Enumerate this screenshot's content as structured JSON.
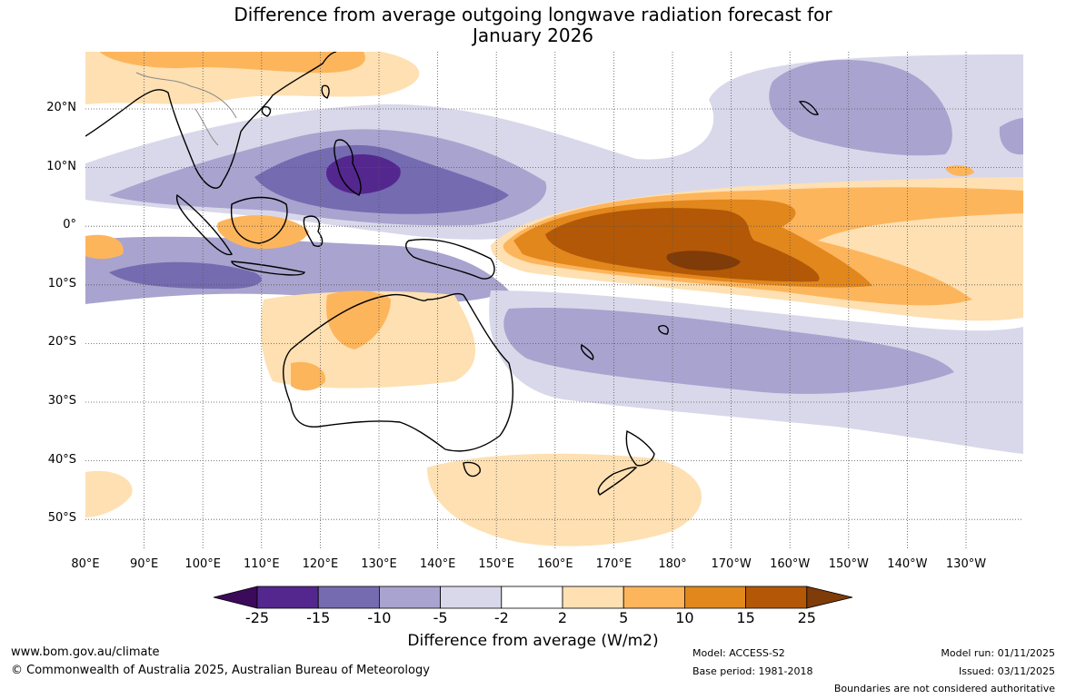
{
  "title": {
    "line1": "Difference from average outgoing longwave radiation forecast for",
    "line2": "January 2026"
  },
  "map": {
    "latitude_labels": [
      "20°N",
      "10°N",
      "0°",
      "10°S",
      "20°S",
      "30°S",
      "40°S",
      "50°S"
    ],
    "longitude_labels": [
      "80°E",
      "90°E",
      "100°E",
      "110°E",
      "120°E",
      "130°E",
      "140°E",
      "150°E",
      "160°E",
      "170°E",
      "180°",
      "170°W",
      "160°W",
      "150°W",
      "140°W",
      "130°W"
    ]
  },
  "colorbar": {
    "tick_labels": [
      "-25",
      "-15",
      "-10",
      "-5",
      "-2",
      "2",
      "5",
      "10",
      "15",
      "25"
    ],
    "colors": [
      "#3b0a5a",
      "#54278f",
      "#756bb1",
      "#a9a3cf",
      "#d9d8ea",
      "#ffffff",
      "#fee0b2",
      "#fdb55c",
      "#e2871c",
      "#b35806",
      "#7f3b08"
    ],
    "title": "Difference from average (W/m2)"
  },
  "footer": {
    "website": "www.bom.gov.au/climate",
    "copyright": "© Commonwealth of Australia 2025, Australian Bureau of Meteorology",
    "model": "Model: ACCESS-S2",
    "base_period": "Base period: 1981-2018",
    "model_run": "Model run: 01/11/2025",
    "issued": "Issued: 03/11/2025",
    "disclaimer": "Boundaries are not considered authoritative"
  }
}
